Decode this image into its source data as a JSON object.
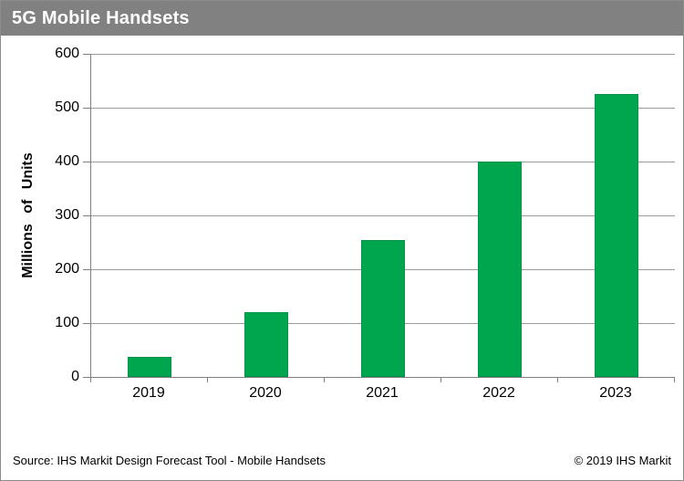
{
  "header": {
    "title": "5G Mobile Handsets"
  },
  "chart_data": {
    "type": "bar",
    "title": "5G Mobile Handsets",
    "categories": [
      "2019",
      "2020",
      "2021",
      "2022",
      "2023"
    ],
    "values": [
      37,
      120,
      255,
      400,
      525
    ],
    "xlabel": "",
    "ylabel": "Millions of Units",
    "ylim": [
      0,
      600
    ],
    "y_ticks": [
      0,
      100,
      200,
      300,
      400,
      500,
      600
    ],
    "grid": "horizontal",
    "legend_position": "none",
    "bar_color": "#00a64e",
    "gridline_color": "#9b9b9b",
    "axis_color": "#7f7f7f",
    "header_bar_color": "#818181"
  },
  "footer": {
    "source": "Source: IHS Markit Design Forecast Tool - Mobile Handsets",
    "copyright": "© 2019 IHS Markit"
  }
}
